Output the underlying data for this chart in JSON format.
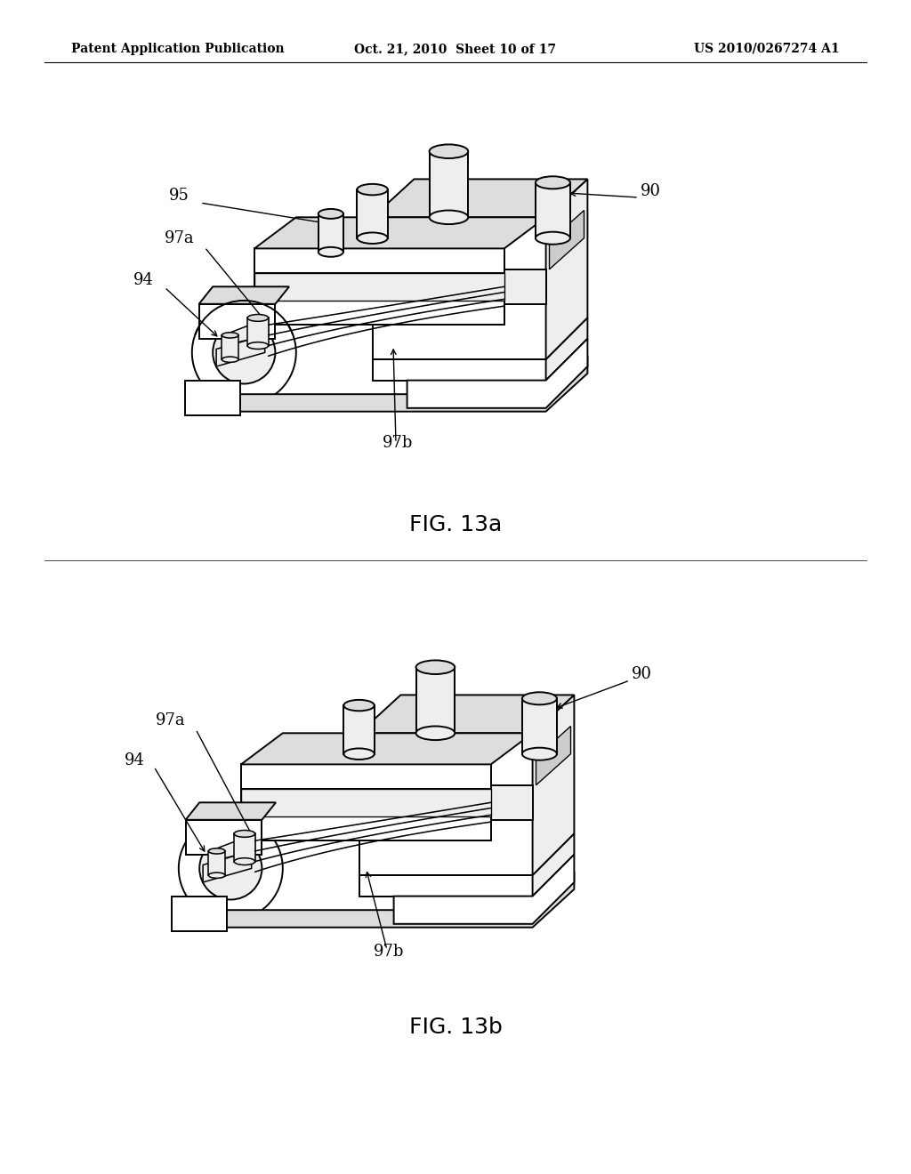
{
  "bg_color": "#ffffff",
  "header_left": "Patent Application Publication",
  "header_mid": "Oct. 21, 2010  Sheet 10 of 17",
  "header_right": "US 2010/0267274 A1",
  "fig1_caption": "FIG. 13a",
  "fig2_caption": "FIG. 13b",
  "header_fontsize": 10,
  "caption_fontsize": 18,
  "label_fontsize": 13
}
